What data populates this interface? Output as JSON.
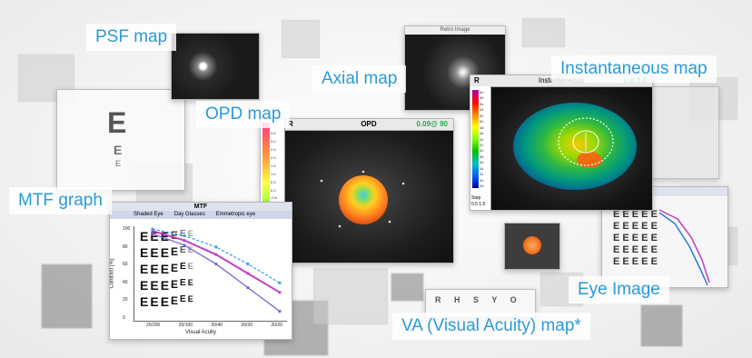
{
  "labels": {
    "psf": "PSF map",
    "axial": "Axial map",
    "instantaneous": "Instantaneous map",
    "opd": "OPD map",
    "mtf": "MTF graph",
    "eye_image": "Eye Image",
    "va": "VA (Visual Acuity) map*"
  },
  "opd_panel": {
    "eye_label": "R",
    "title": "OPD",
    "value": "0.09@ 90",
    "scale_ticks": [
      "4.0",
      "3.5",
      "3.0",
      "2.5",
      "2.0",
      "1.5",
      "1.0",
      "0.5",
      "0.0",
      "-0.5",
      "-1.0",
      "-1.5",
      "-2.0",
      "-2.5",
      "-3.0",
      "-3.5",
      "-4.0"
    ]
  },
  "inst_panel": {
    "eye_label": "R",
    "title": "Instantaneous",
    "value": "Lat 5.4",
    "scale_ticks": [
      "60",
      "58",
      "56",
      "54",
      "52",
      "50",
      "48",
      "46",
      "44",
      "42",
      "40",
      "38",
      "36",
      "34",
      "32",
      "30",
      "28"
    ],
    "footer_top": "Step",
    "footer_bottom": "0.5 1.5"
  },
  "mtf_panel": {
    "title": "MTF",
    "legend": [
      "Shaded Eye",
      "Day Glasses",
      "Emmetropic eye"
    ],
    "ylabel": "Contrast [%]",
    "xlabel": "Visual Acuity",
    "xticks": [
      "20/200",
      "20/100",
      "20/40",
      "20/30",
      "20/20"
    ],
    "yticks": [
      "100",
      "80",
      "60",
      "40",
      "20",
      "0"
    ]
  },
  "accent_color": "#2a9ad6",
  "chart_data": {
    "type": "line",
    "title": "MTF",
    "xlabel": "Visual Acuity",
    "ylabel": "Contrast [%]",
    "categories": [
      "20/200",
      "20/100",
      "20/40",
      "20/30",
      "20/20"
    ],
    "ylim": [
      0,
      100
    ],
    "series": [
      {
        "name": "Shaded Eye",
        "values": [
          95,
          85,
          70,
          50,
          30
        ]
      },
      {
        "name": "Day Glasses",
        "values": [
          92,
          80,
          60,
          35,
          10
        ]
      },
      {
        "name": "Emmetropic eye",
        "values": [
          97,
          90,
          78,
          60,
          40
        ]
      }
    ]
  }
}
